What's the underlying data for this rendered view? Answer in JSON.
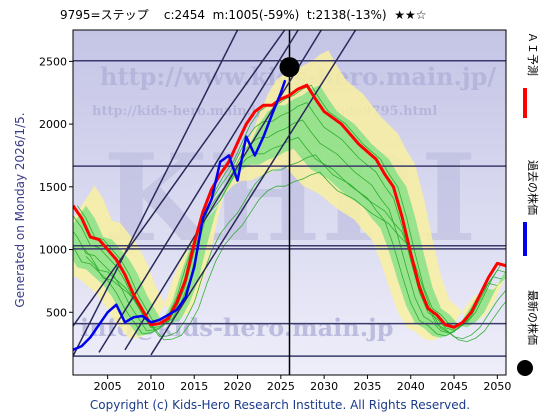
{
  "chart_data": {
    "type": "line",
    "title": "9795=ステップ    c:2454  m:1005(-59%)  t:2138(-13%)  ★★☆",
    "x_ticks": [
      2005,
      2010,
      2015,
      2020,
      2025,
      2030,
      2035,
      2040,
      2045,
      2050
    ],
    "y_ticks": [
      500,
      1000,
      1500,
      2000,
      2500
    ],
    "xlim": [
      2001,
      2051
    ],
    "ylim": [
      0,
      2750
    ],
    "horizontal_lines": [
      150,
      410,
      1005,
      1030,
      1665,
      2505
    ],
    "vertical_line_x": 2026,
    "latest_point": {
      "x": 2026,
      "y": 2454
    },
    "series": [
      {
        "name": "ＡＩ予測",
        "color": "#ff0000",
        "x": [
          2001,
          2002,
          2003,
          2004,
          2005,
          2006,
          2007,
          2008,
          2009,
          2010,
          2011,
          2012,
          2013,
          2014,
          2015,
          2016,
          2017,
          2018,
          2019,
          2020,
          2021,
          2022,
          2023,
          2024,
          2025,
          2026,
          2027,
          2028,
          2029,
          2030,
          2031,
          2032,
          2033,
          2034,
          2035,
          2036,
          2037,
          2038,
          2039,
          2040,
          2041,
          2042,
          2043,
          2044,
          2045,
          2046,
          2047,
          2048,
          2049,
          2050,
          2051
        ],
        "values": [
          1350,
          1250,
          1100,
          1080,
          1000,
          920,
          800,
          640,
          520,
          400,
          410,
          450,
          580,
          760,
          1050,
          1300,
          1480,
          1600,
          1700,
          1850,
          2000,
          2100,
          2150,
          2150,
          2200,
          2230,
          2280,
          2310,
          2200,
          2100,
          2050,
          2000,
          1920,
          1840,
          1780,
          1720,
          1600,
          1500,
          1260,
          970,
          700,
          530,
          480,
          400,
          380,
          420,
          500,
          640,
          780,
          890,
          870
        ]
      },
      {
        "name": "過去の株価",
        "color": "#0000ee",
        "x": [
          2001,
          2002,
          2003,
          2004,
          2005,
          2006,
          2007,
          2008,
          2009,
          2010,
          2011,
          2012,
          2013,
          2014,
          2015,
          2016,
          2017,
          2018,
          2019,
          2020,
          2021,
          2022,
          2023,
          2024,
          2025,
          2025.5
        ],
        "values": [
          200,
          230,
          300,
          400,
          500,
          560,
          420,
          460,
          470,
          420,
          440,
          480,
          520,
          620,
          860,
          1250,
          1400,
          1700,
          1750,
          1550,
          1900,
          1750,
          1900,
          2080,
          2250,
          2350
        ]
      }
    ],
    "points": [
      {
        "name": "最新の株価",
        "x": 2026,
        "y": 2454
      }
    ]
  },
  "copyright": "Copyright (c) Kids-Hero Research Institute. All Rights Reserved.",
  "generated": "Generated on Monday 2026/1/5.",
  "watermark": {
    "url": "http://www.kids-hero.main.jp/",
    "page": "http://kids-hero.main.jp/.../tools/code9795.html",
    "email": "info@kids-hero.main.jp",
    "logo": "KHRI"
  },
  "legend": {
    "ai": "ＡＩ予測",
    "past": "過去の株価",
    "latest": "最新の株価"
  },
  "colors": {
    "background_top": "#c8c8e8",
    "background_bottom": "#e8e8f8",
    "band_outer": "#f8f0a0",
    "band_inner": "#88e088",
    "band_line": "#22aa22",
    "grid_line": "#3a3a6a",
    "trend_line": "#2a2a5a"
  }
}
